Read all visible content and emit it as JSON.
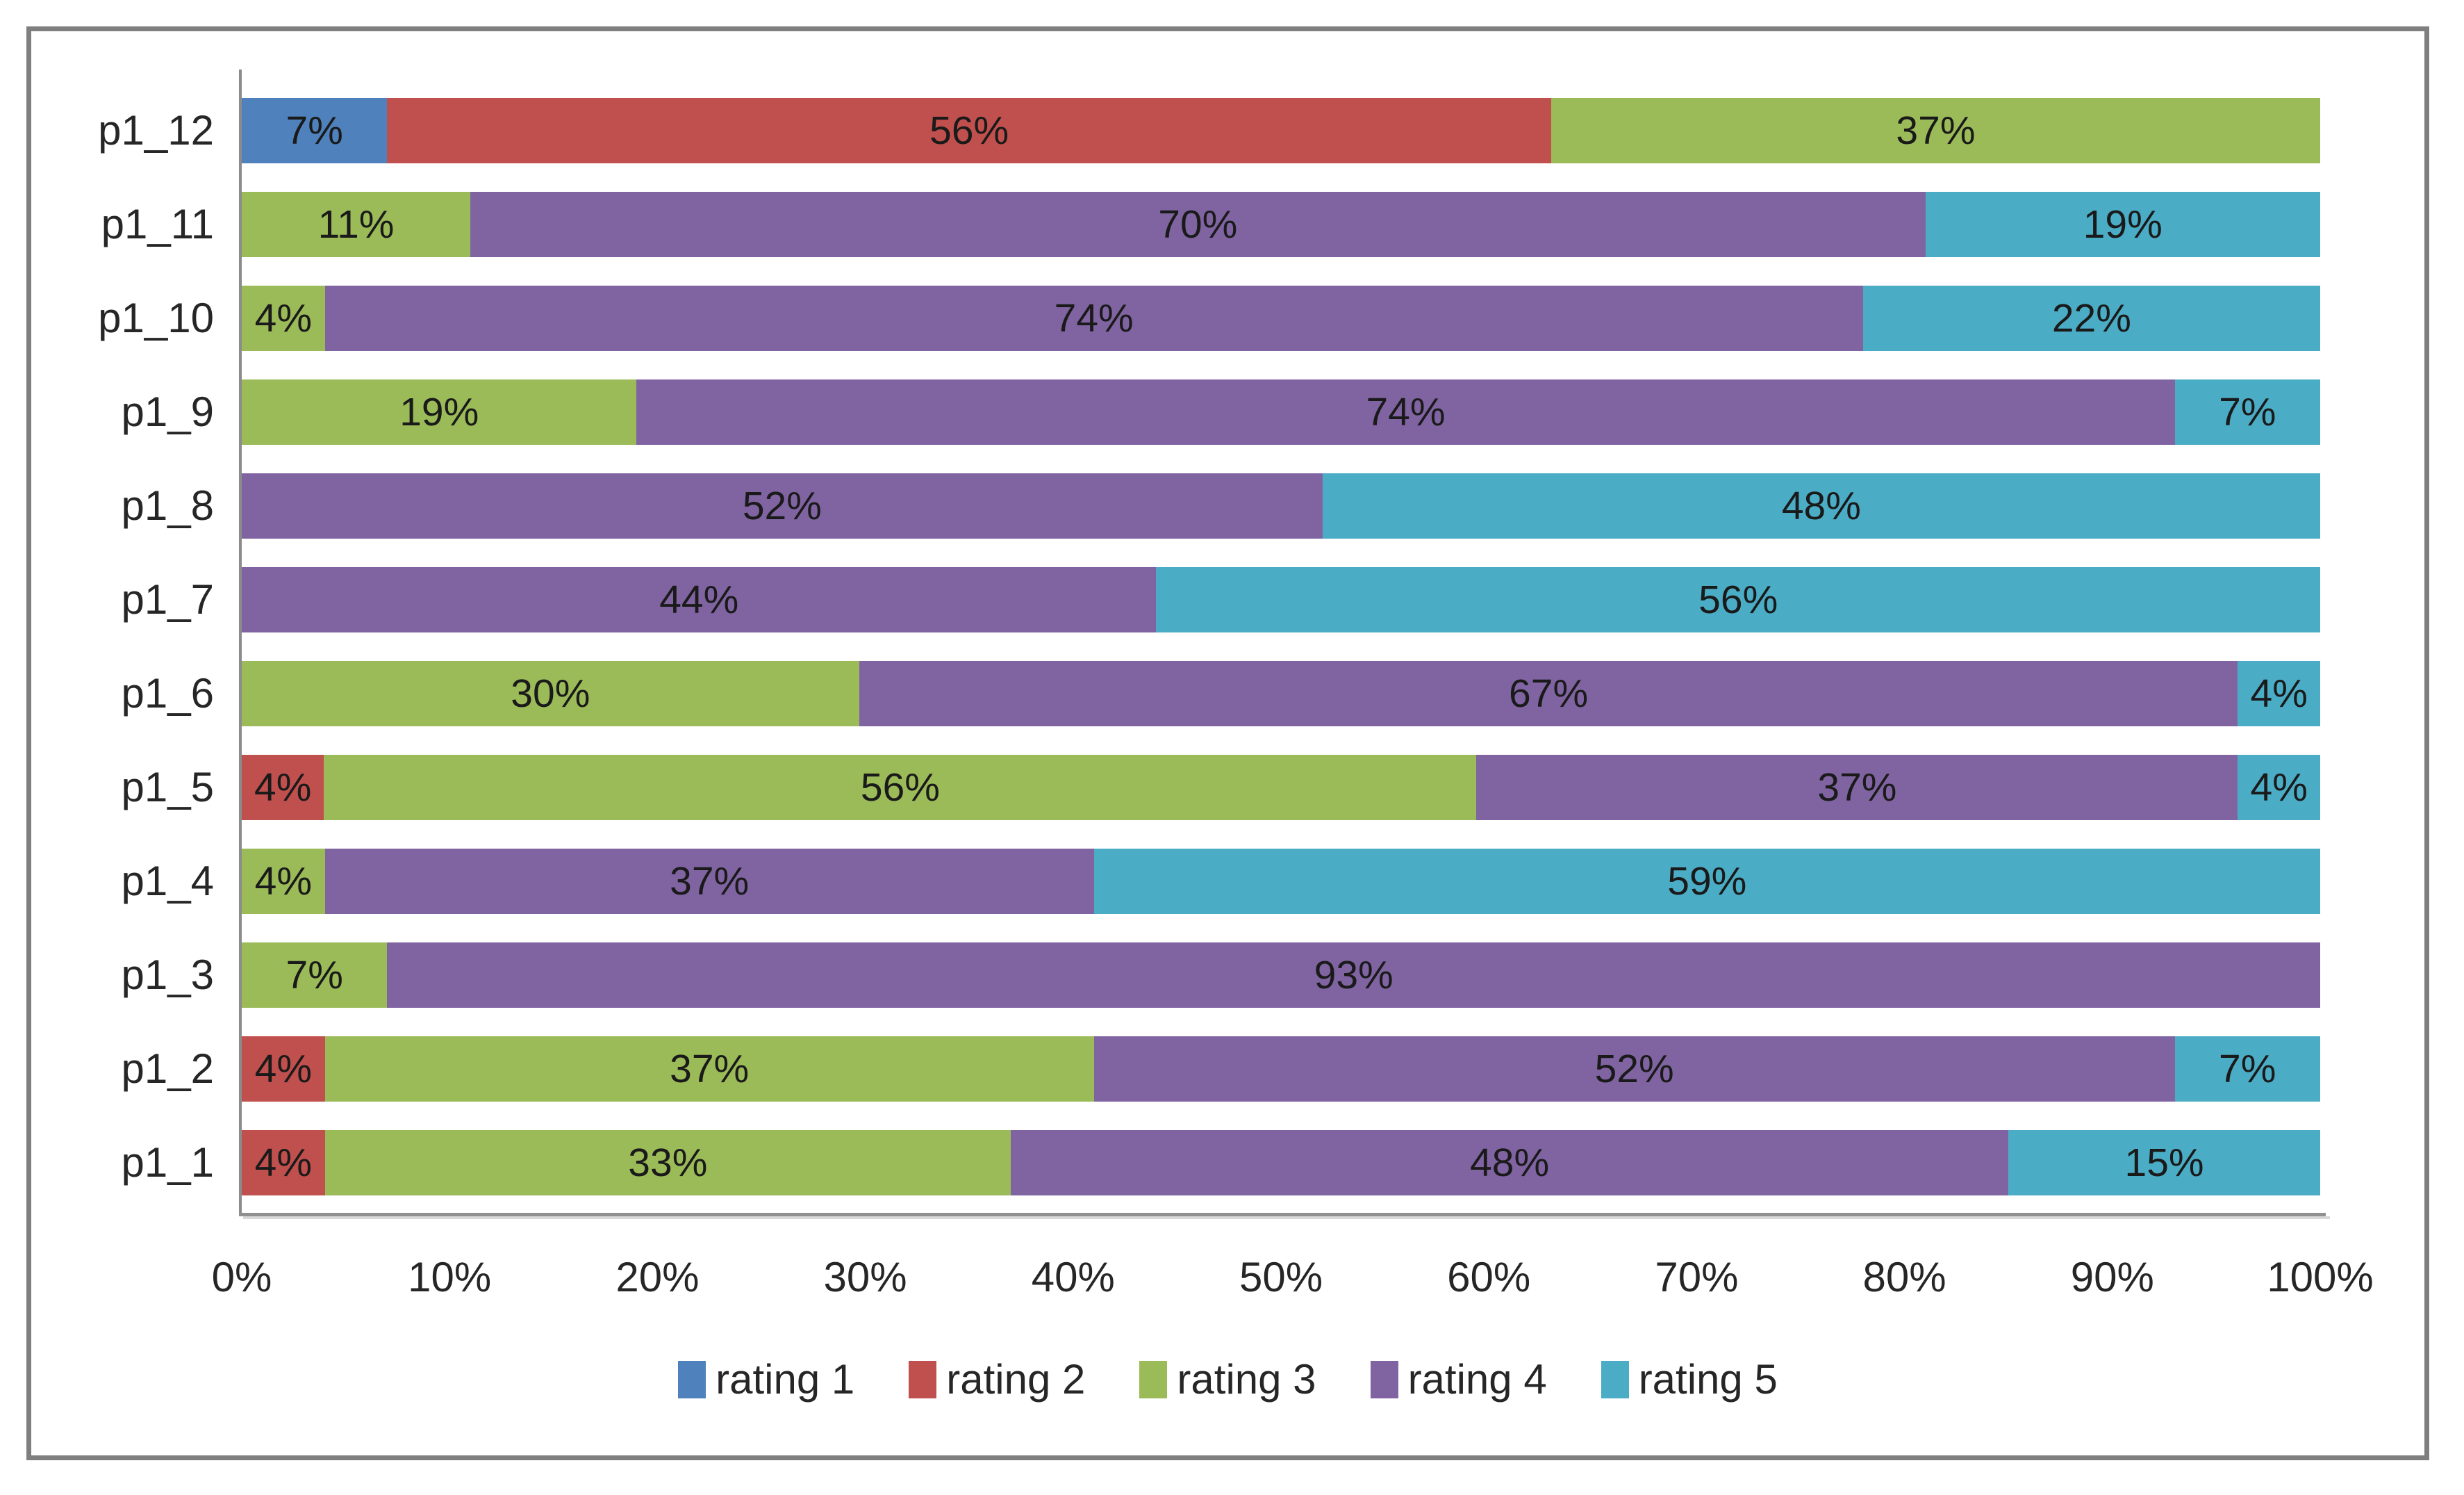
{
  "colors": {
    "background": "#FFFFFF",
    "frame_border": "#7F7F7F",
    "axis_line": "#8C8C8C",
    "axis_shadow": "#D8D8D8",
    "text": "#262626",
    "value_label_text": "#1A1A1A"
  },
  "chart_data": {
    "type": "bar",
    "orientation": "horizontal",
    "stacked": true,
    "title": "",
    "xlabel": "",
    "ylabel": "",
    "grid": false,
    "x_axis": {
      "min": 0,
      "max": 100,
      "ticks": [
        "0%",
        "10%",
        "20%",
        "30%",
        "40%",
        "50%",
        "60%",
        "70%",
        "80%",
        "90%",
        "100%"
      ]
    },
    "series": [
      {
        "name": "rating 1",
        "color": "#4F81BD"
      },
      {
        "name": "rating 2",
        "color": "#C0504D"
      },
      {
        "name": "rating 3",
        "color": "#9BBB59"
      },
      {
        "name": "rating 4",
        "color": "#8064A2"
      },
      {
        "name": "rating 5",
        "color": "#4BACC6"
      }
    ],
    "rows_top_to_bottom": [
      {
        "category": "p1_12",
        "segments": [
          {
            "series": "rating 1",
            "value": 7,
            "label": "7%"
          },
          {
            "series": "rating 2",
            "value": 56,
            "label": "56%"
          },
          {
            "series": "rating 3",
            "value": 37,
            "label": "37%"
          }
        ]
      },
      {
        "category": "p1_11",
        "segments": [
          {
            "series": "rating 3",
            "value": 11,
            "label": "11%"
          },
          {
            "series": "rating 4",
            "value": 70,
            "label": "70%"
          },
          {
            "series": "rating 5",
            "value": 19,
            "label": "19%"
          }
        ]
      },
      {
        "category": "p1_10",
        "segments": [
          {
            "series": "rating 3",
            "value": 4,
            "label": "4%"
          },
          {
            "series": "rating 4",
            "value": 74,
            "label": "74%"
          },
          {
            "series": "rating 5",
            "value": 22,
            "label": "22%"
          }
        ]
      },
      {
        "category": "p1_9",
        "segments": [
          {
            "series": "rating 3",
            "value": 19,
            "label": "19%"
          },
          {
            "series": "rating 4",
            "value": 74,
            "label": "74%"
          },
          {
            "series": "rating 5",
            "value": 7,
            "label": "7%"
          }
        ]
      },
      {
        "category": "p1_8",
        "segments": [
          {
            "series": "rating 4",
            "value": 52,
            "label": "52%"
          },
          {
            "series": "rating 5",
            "value": 48,
            "label": "48%"
          }
        ]
      },
      {
        "category": "p1_7",
        "segments": [
          {
            "series": "rating 4",
            "value": 44,
            "label": "44%"
          },
          {
            "series": "rating 5",
            "value": 56,
            "label": "56%"
          }
        ]
      },
      {
        "category": "p1_6",
        "segments": [
          {
            "series": "rating 3",
            "value": 30,
            "label": "30%"
          },
          {
            "series": "rating 4",
            "value": 67,
            "label": "67%"
          },
          {
            "series": "rating 5",
            "value": 4,
            "label": "4%"
          }
        ]
      },
      {
        "category": "p1_5",
        "segments": [
          {
            "series": "rating 2",
            "value": 4,
            "label": "4%"
          },
          {
            "series": "rating 3",
            "value": 56,
            "label": "56%"
          },
          {
            "series": "rating 4",
            "value": 37,
            "label": "37%"
          },
          {
            "series": "rating 5",
            "value": 4,
            "label": "4%"
          }
        ]
      },
      {
        "category": "p1_4",
        "segments": [
          {
            "series": "rating 3",
            "value": 4,
            "label": "4%"
          },
          {
            "series": "rating 4",
            "value": 37,
            "label": "37%"
          },
          {
            "series": "rating 5",
            "value": 59,
            "label": "59%"
          }
        ]
      },
      {
        "category": "p1_3",
        "segments": [
          {
            "series": "rating 3",
            "value": 7,
            "label": "7%"
          },
          {
            "series": "rating 4",
            "value": 93,
            "label": "93%"
          }
        ]
      },
      {
        "category": "p1_2",
        "segments": [
          {
            "series": "rating 2",
            "value": 4,
            "label": "4%"
          },
          {
            "series": "rating 3",
            "value": 37,
            "label": "37%"
          },
          {
            "series": "rating 4",
            "value": 52,
            "label": "52%"
          },
          {
            "series": "rating 5",
            "value": 7,
            "label": "7%"
          }
        ]
      },
      {
        "category": "p1_1",
        "segments": [
          {
            "series": "rating 2",
            "value": 4,
            "label": "4%"
          },
          {
            "series": "rating 3",
            "value": 33,
            "label": "33%"
          },
          {
            "series": "rating 4",
            "value": 48,
            "label": "48%"
          },
          {
            "series": "rating 5",
            "value": 15,
            "label": "15%"
          }
        ]
      }
    ],
    "legend": {
      "position": "bottom",
      "entries": [
        "rating 1",
        "rating 2",
        "rating 3",
        "rating 4",
        "rating 5"
      ]
    }
  }
}
